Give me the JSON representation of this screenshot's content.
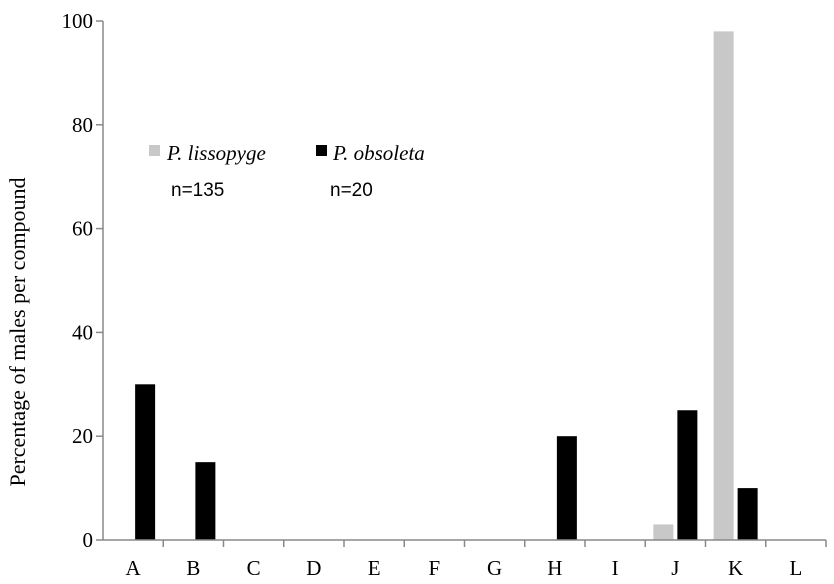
{
  "chart_data": {
    "type": "bar",
    "ylabel": "Percentage of males per compound",
    "xlabel": "",
    "ylim": [
      0,
      100
    ],
    "yticks": [
      0,
      20,
      40,
      60,
      80,
      100
    ],
    "grid": false,
    "legend_position": "top-left",
    "categories": [
      "A",
      "B",
      "C",
      "D",
      "E",
      "F",
      "G",
      "H",
      "I",
      "J",
      "K",
      "L"
    ],
    "series": [
      {
        "name": "P. lissopyge",
        "n_label": "n=135",
        "color": "#c8c8c8",
        "values": [
          0,
          0,
          0,
          0,
          0,
          0,
          0,
          0,
          0,
          3,
          98,
          0
        ]
      },
      {
        "name": "P. obsoleta",
        "n_label": "n=20",
        "color": "#000000",
        "values": [
          30,
          15,
          0,
          0,
          0,
          0,
          0,
          20,
          0,
          25,
          10,
          0
        ]
      }
    ]
  }
}
